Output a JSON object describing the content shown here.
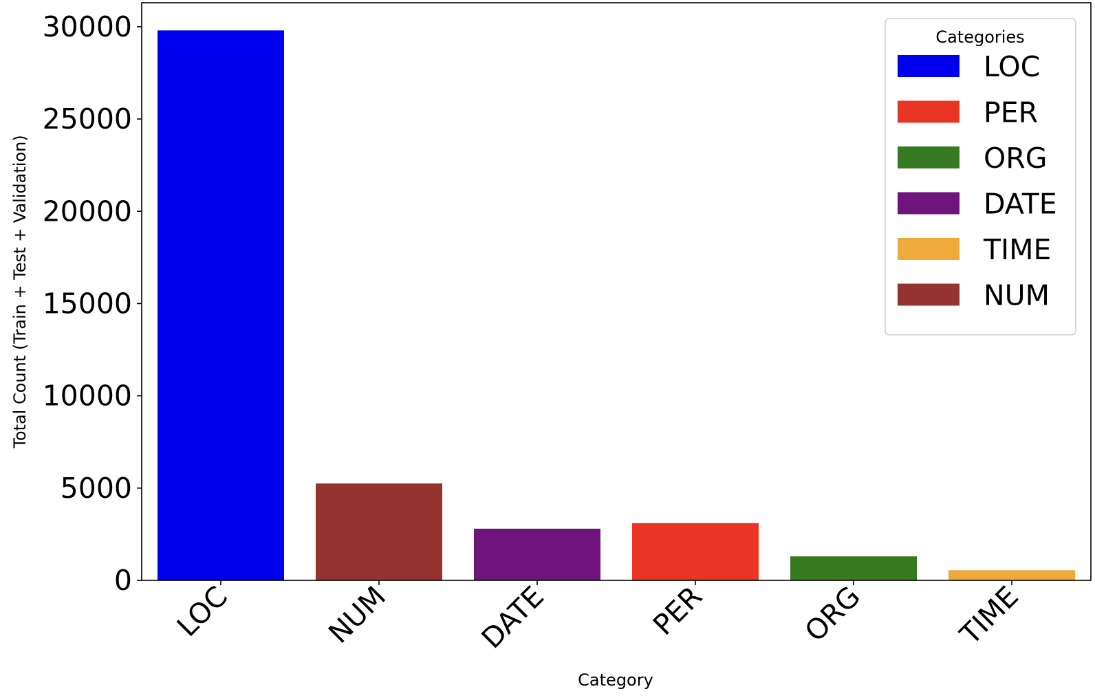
{
  "chart_data": {
    "type": "bar",
    "title": "",
    "xlabel": "Category",
    "ylabel": "Total Count (Train + Test + Validation)",
    "ylim": [
      0,
      31300
    ],
    "yticks": [
      0,
      5000,
      10000,
      15000,
      20000,
      25000,
      30000
    ],
    "ytick_labels": [
      "0",
      "5000",
      "10000",
      "15000",
      "20000",
      "25000",
      "30000"
    ],
    "categories": [
      "LOC",
      "NUM",
      "DATE",
      "PER",
      "ORG",
      "TIME"
    ],
    "values": [
      29800,
      5250,
      2800,
      3100,
      1300,
      550
    ],
    "bar_colors": [
      "#0000ee",
      "#943330",
      "#6e147c",
      "#e83524",
      "#367a21",
      "#f0aa3c"
    ],
    "grid": false,
    "legend": {
      "title": "Categories",
      "placement": "top-right",
      "entries": [
        {
          "label": "LOC",
          "color": "#0000ee"
        },
        {
          "label": "PER",
          "color": "#e83524"
        },
        {
          "label": "ORG",
          "color": "#367a21"
        },
        {
          "label": "DATE",
          "color": "#6e147c"
        },
        {
          "label": "TIME",
          "color": "#f0aa3c"
        },
        {
          "label": "NUM",
          "color": "#943330"
        }
      ]
    }
  }
}
